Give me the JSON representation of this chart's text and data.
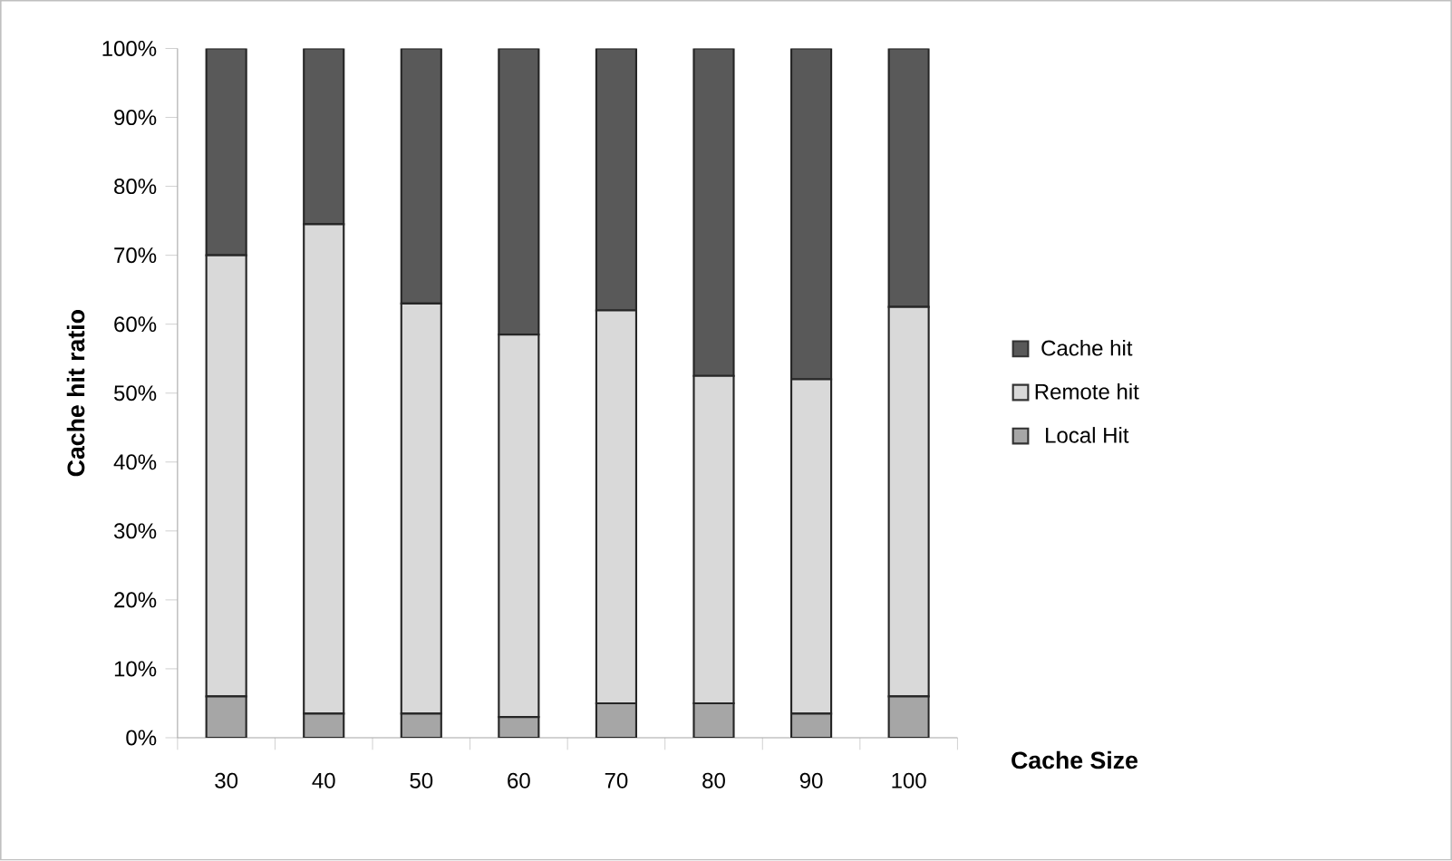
{
  "chart_data": {
    "type": "bar",
    "stacked": true,
    "xlabel": "Cache Size",
    "ylabel": "Cache hit ratio",
    "categories": [
      "30",
      "40",
      "50",
      "60",
      "70",
      "80",
      "90",
      "100"
    ],
    "series": [
      {
        "name": "Local Hit",
        "color": "#a6a6a6",
        "values": [
          6,
          3.5,
          3.5,
          3,
          5,
          5,
          3.5,
          6
        ]
      },
      {
        "name": "Remote hit",
        "color": "#d9d9d9",
        "values": [
          64,
          71,
          59.5,
          55.5,
          57,
          47.5,
          48.5,
          56.5
        ]
      },
      {
        "name": "Cache hit",
        "color": "#595959",
        "values": [
          30,
          25.5,
          37,
          41.5,
          38,
          47.5,
          48,
          37.5
        ]
      }
    ],
    "ylim": [
      0,
      100
    ],
    "yticks": [
      {
        "value": 0,
        "label": "0%"
      },
      {
        "value": 10,
        "label": "10%"
      },
      {
        "value": 20,
        "label": "20%"
      },
      {
        "value": 30,
        "label": "30%"
      },
      {
        "value": 40,
        "label": "40%"
      },
      {
        "value": 50,
        "label": "50%"
      },
      {
        "value": 60,
        "label": "60%"
      },
      {
        "value": 70,
        "label": "70%"
      },
      {
        "value": 80,
        "label": "80%"
      },
      {
        "value": 90,
        "label": "90%"
      },
      {
        "value": 100,
        "label": "100%"
      }
    ],
    "legend": "right"
  }
}
